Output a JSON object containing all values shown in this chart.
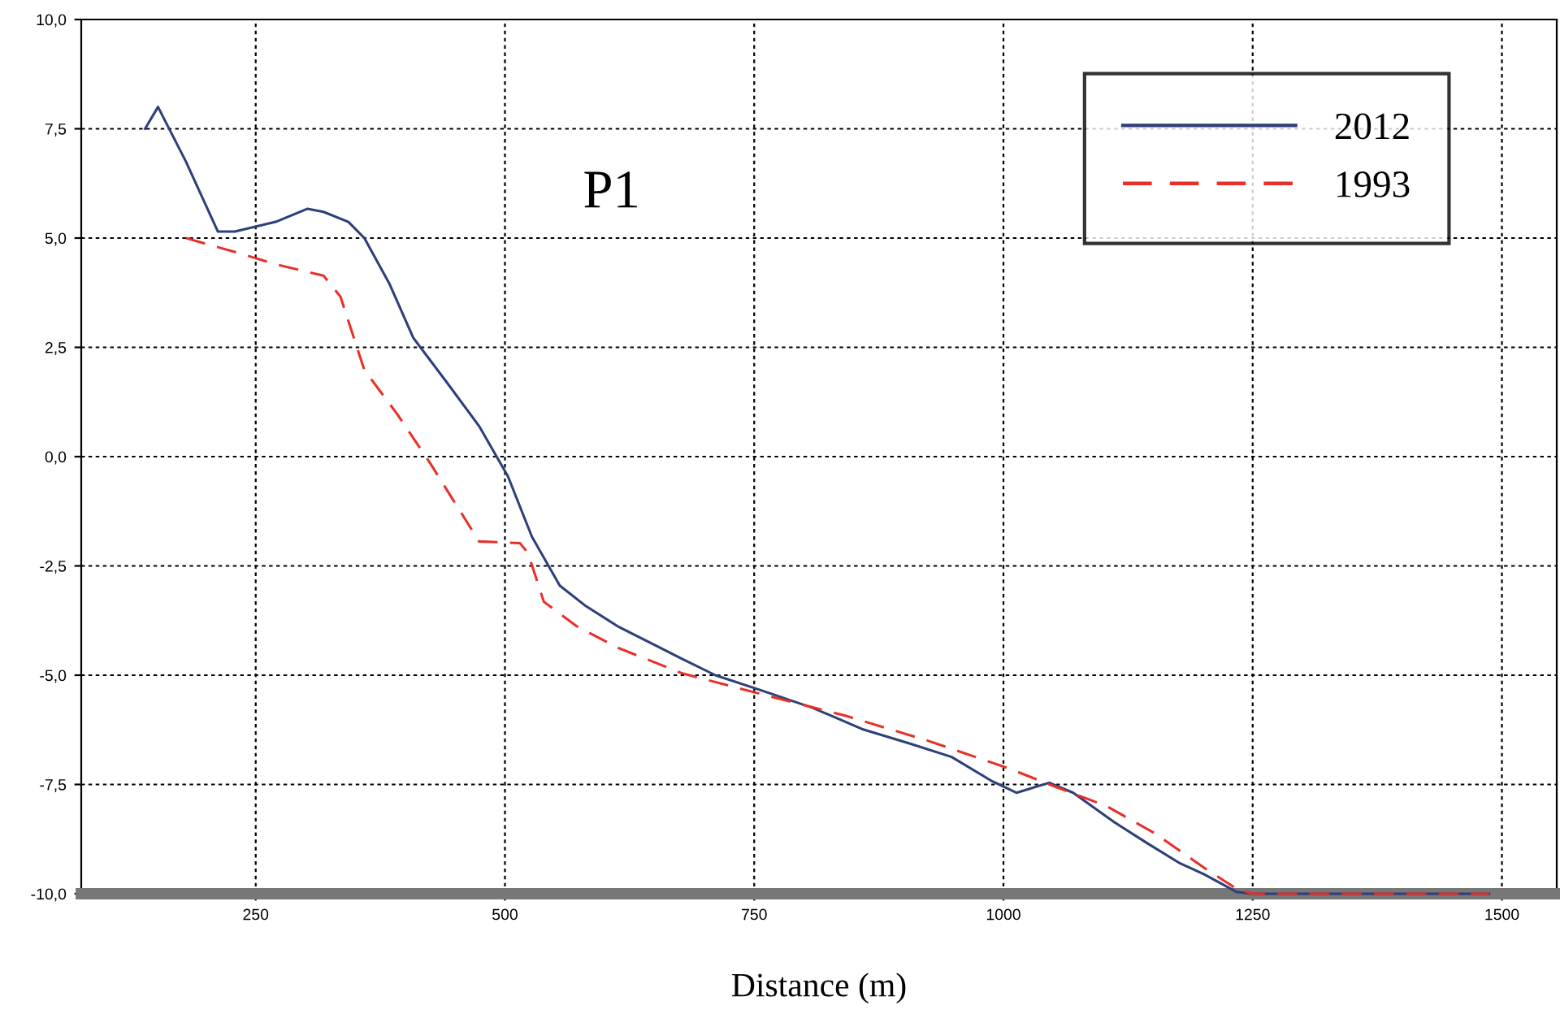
{
  "chart_data": {
    "type": "line",
    "xlabel": "Distance (m)",
    "annotations": [
      "P1"
    ],
    "xlim": [
      75,
      1555
    ],
    "ylim": [
      -10,
      10
    ],
    "xticks": [
      250,
      500,
      750,
      1000,
      1250,
      1500
    ],
    "yticks": [
      {
        "value": 10,
        "label": "10,0"
      },
      {
        "value": 7.5,
        "label": "7,5"
      },
      {
        "value": 5,
        "label": "5,0"
      },
      {
        "value": 2.5,
        "label": "2,5"
      },
      {
        "value": 0,
        "label": "0,0"
      },
      {
        "value": -2.5,
        "label": "-2,5"
      },
      {
        "value": -5,
        "label": "-5,0"
      },
      {
        "value": -7.5,
        "label": "-7,5"
      },
      {
        "value": -10,
        "label": "-10,0"
      }
    ],
    "grid": true,
    "legend": "top right",
    "series": [
      {
        "name": "2012",
        "color": "#2e3f7a",
        "line_style": "solid",
        "x": [
          139,
          152,
          180,
          212,
          229,
          270,
          302,
          318,
          343,
          359,
          384,
          408,
          441,
          474,
          503,
          527,
          555,
          580,
          613,
          645,
          678,
          711,
          760,
          809,
          858,
          907,
          948,
          989,
          1013,
          1046,
          1070,
          1111,
          1144,
          1176,
          1201,
          1234,
          1250,
          1487
        ],
        "values": [
          7.5,
          8.0,
          6.75,
          5.15,
          5.15,
          5.37,
          5.67,
          5.6,
          5.37,
          5.0,
          3.96,
          2.72,
          1.72,
          0.7,
          -0.45,
          -1.83,
          -2.95,
          -3.4,
          -3.88,
          -4.25,
          -4.63,
          -5.0,
          -5.37,
          -5.75,
          -6.23,
          -6.57,
          -6.87,
          -7.43,
          -7.69,
          -7.46,
          -7.69,
          -8.36,
          -8.84,
          -9.29,
          -9.55,
          -9.96,
          -10,
          -10
        ]
      },
      {
        "name": "1993",
        "color": "#e8302a",
        "line_style": "dashed",
        "x": [
          180,
          237,
          270,
          318,
          335,
          359,
          392,
          425,
          474,
          515,
          523,
          539,
          572,
          613,
          678,
          760,
          842,
          923,
          1005,
          1054,
          1103,
          1152,
          1201,
          1234,
          1250,
          1487
        ],
        "values": [
          5.0,
          4.63,
          4.4,
          4.14,
          3.66,
          1.98,
          0.97,
          -0.15,
          -1.94,
          -1.98,
          -2.2,
          -3.32,
          -3.88,
          -4.37,
          -4.96,
          -5.45,
          -5.93,
          -6.49,
          -7.13,
          -7.57,
          -7.99,
          -8.62,
          -9.4,
          -9.89,
          -10,
          -10
        ]
      }
    ]
  }
}
